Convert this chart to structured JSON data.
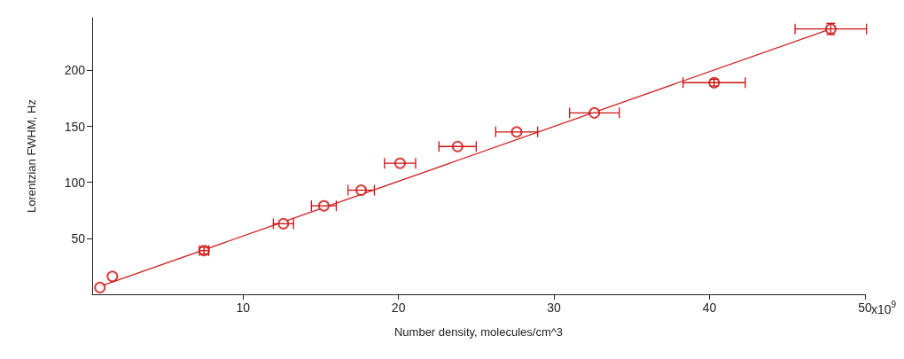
{
  "chart_data": {
    "type": "scatter",
    "xlabel": "Number density, molecules/cm^3",
    "ylabel": "Lorentzian FWHM, Hz",
    "xlim": [
      0.3,
      50
    ],
    "xticks": [
      10,
      20,
      30,
      40,
      50
    ],
    "annotations": [
      "x10$^{9}$"
    ],
    "ylim": [
      0,
      247
    ],
    "yticks": [
      50,
      100,
      150,
      200
    ],
    "grid": false,
    "series": [
      {
        "color": "#cc1111",
        "marker": "circle",
        "x": [
          0.8,
          1.6,
          7.5,
          12.6,
          15.2,
          17.6,
          20.1,
          23.8,
          27.6,
          32.6,
          40.3,
          47.8
        ],
        "values": [
          6,
          16,
          39,
          63,
          79,
          93,
          117,
          132,
          145,
          162,
          189,
          237
        ],
        "xerrors": [
          null,
          null,
          0.3,
          0.65,
          0.8,
          0.85,
          1.0,
          1.2,
          1.35,
          1.6,
          2.0,
          2.3
        ],
        "errors": [
          null,
          null,
          3,
          null,
          null,
          null,
          null,
          null,
          null,
          null,
          3,
          5
        ]
      },
      {
        "type": "line",
        "color": "#cc2222",
        "x": [
          0.8,
          47.8
        ],
        "values": [
          7,
          237
        ],
        "marker": "none",
        "line_style": "solid"
      }
    ]
  }
}
